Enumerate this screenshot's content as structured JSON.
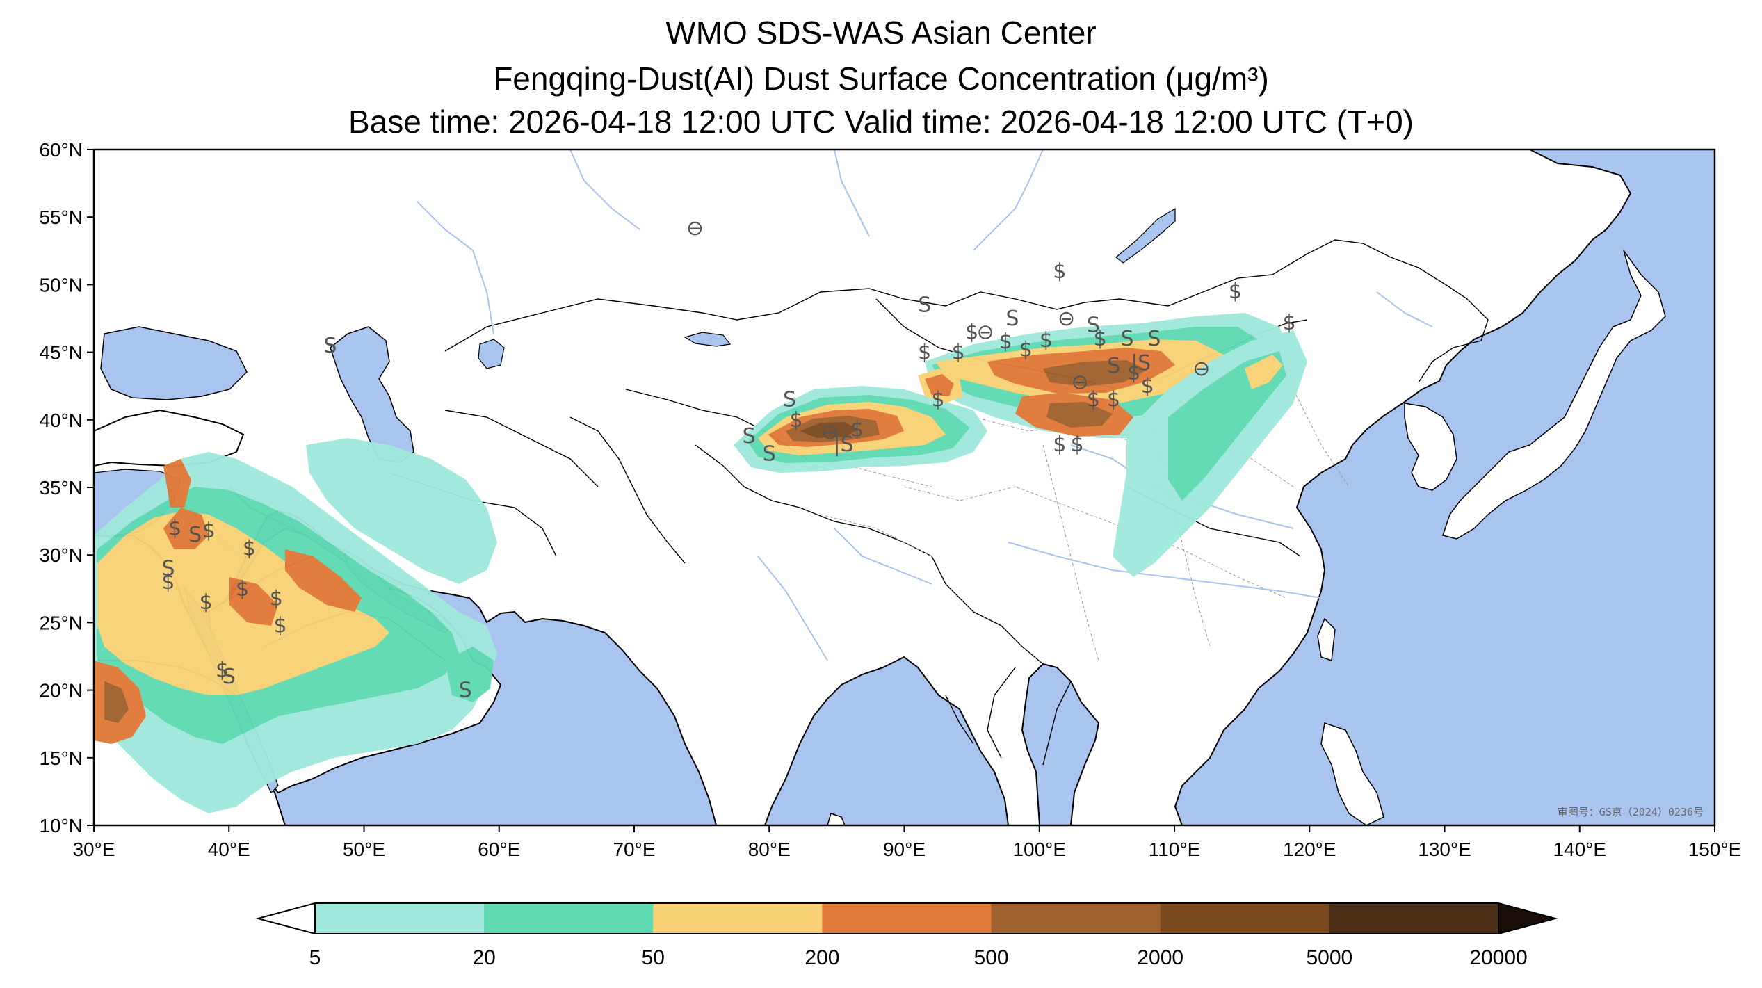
{
  "header": {
    "line1": "WMO SDS-WAS Asian Center",
    "line2": "Fengqing-Dust(AI) Dust Surface Concentration (μg/m³)",
    "line3": "Base time: 2026-04-18 12:00 UTC Valid time: 2026-04-18 12:00 UTC (T+0)"
  },
  "map": {
    "lon_range": [
      30,
      150
    ],
    "lat_range": [
      10,
      60
    ],
    "lon_ticks": [
      "30°E",
      "40°E",
      "50°E",
      "60°E",
      "70°E",
      "80°E",
      "90°E",
      "100°E",
      "110°E",
      "120°E",
      "130°E",
      "140°E",
      "150°E"
    ],
    "lat_ticks": [
      "60°N",
      "55°N",
      "50°N",
      "45°N",
      "40°N",
      "35°N",
      "30°N",
      "25°N",
      "20°N",
      "15°N",
      "10°N"
    ],
    "approval_stamp": "审图号：GS京（2024）0236号",
    "colors": {
      "ocean": "#a9c4ee",
      "land": "#ffffff",
      "border": "#000000",
      "river": "#a9c4ee"
    }
  },
  "colorbar": {
    "levels": [
      "5",
      "20",
      "50",
      "200",
      "500",
      "2000",
      "5000",
      "20000"
    ],
    "colors": [
      "#a0e8dc",
      "#5ed9b2",
      "#f8d275",
      "#e07838",
      "#9f612d",
      "#7b4a21",
      "#4a2f16"
    ],
    "under_color": "#ffffff",
    "over_color": "#1a0f08"
  },
  "symbols": [
    {
      "lon": 84.5,
      "lat": 39.1,
      "glyph": "⊖"
    },
    {
      "lon": 96.0,
      "lat": 46.5,
      "glyph": "⊖"
    },
    {
      "lon": 102.0,
      "lat": 47.5,
      "glyph": "⊖"
    },
    {
      "lon": 112.0,
      "lat": 43.8,
      "glyph": "⊖"
    },
    {
      "lon": 74.5,
      "lat": 54.2,
      "glyph": "⊖"
    },
    {
      "lon": 103.0,
      "lat": 42.8,
      "glyph": "⊖"
    },
    {
      "lon": 82.0,
      "lat": 40.0,
      "glyph": "$"
    },
    {
      "lon": 86.5,
      "lat": 39.3,
      "glyph": "$"
    },
    {
      "lon": 91.5,
      "lat": 45.0,
      "glyph": "$"
    },
    {
      "lon": 94.0,
      "lat": 45.0,
      "glyph": "$"
    },
    {
      "lon": 95.0,
      "lat": 46.5,
      "glyph": "$"
    },
    {
      "lon": 97.5,
      "lat": 45.8,
      "glyph": "$"
    },
    {
      "lon": 99.0,
      "lat": 45.2,
      "glyph": "$"
    },
    {
      "lon": 100.5,
      "lat": 45.9,
      "glyph": "$"
    },
    {
      "lon": 104.5,
      "lat": 46.0,
      "glyph": "$"
    },
    {
      "lon": 101.5,
      "lat": 51.0,
      "glyph": "$"
    },
    {
      "lon": 114.5,
      "lat": 49.5,
      "glyph": "$"
    },
    {
      "lon": 118.5,
      "lat": 47.2,
      "glyph": "$"
    },
    {
      "lon": 92.5,
      "lat": 41.5,
      "glyph": "$"
    },
    {
      "lon": 101.5,
      "lat": 38.2,
      "glyph": "$"
    },
    {
      "lon": 102.8,
      "lat": 38.2,
      "glyph": "$"
    },
    {
      "lon": 104.0,
      "lat": 41.5,
      "glyph": "$"
    },
    {
      "lon": 105.5,
      "lat": 41.5,
      "glyph": "$"
    },
    {
      "lon": 107.0,
      "lat": 43.5,
      "glyph": "$"
    },
    {
      "lon": 108.0,
      "lat": 42.5,
      "glyph": "$"
    },
    {
      "lon": 36.0,
      "lat": 32.0,
      "glyph": "$"
    },
    {
      "lon": 38.5,
      "lat": 31.8,
      "glyph": "$"
    },
    {
      "lon": 41.5,
      "lat": 30.5,
      "glyph": "$"
    },
    {
      "lon": 41.0,
      "lat": 27.5,
      "glyph": "$"
    },
    {
      "lon": 43.5,
      "lat": 26.8,
      "glyph": "$"
    },
    {
      "lon": 43.8,
      "lat": 24.8,
      "glyph": "$"
    },
    {
      "lon": 38.3,
      "lat": 26.5,
      "glyph": "$"
    },
    {
      "lon": 35.5,
      "lat": 28.0,
      "glyph": "$"
    },
    {
      "lon": 39.5,
      "lat": 21.5,
      "glyph": "$"
    },
    {
      "lon": 80.0,
      "lat": 37.5,
      "glyph": "S"
    },
    {
      "lon": 78.5,
      "lat": 38.8,
      "glyph": "S"
    },
    {
      "lon": 81.5,
      "lat": 41.5,
      "glyph": "S"
    },
    {
      "lon": 91.5,
      "lat": 48.5,
      "glyph": "S"
    },
    {
      "lon": 98.0,
      "lat": 47.5,
      "glyph": "S"
    },
    {
      "lon": 104.0,
      "lat": 47.0,
      "glyph": "S"
    },
    {
      "lon": 105.5,
      "lat": 44.0,
      "glyph": "S"
    },
    {
      "lon": 106.5,
      "lat": 46.0,
      "glyph": "S"
    },
    {
      "lon": 108.5,
      "lat": 46.0,
      "glyph": "S"
    },
    {
      "lon": 47.5,
      "lat": 45.5,
      "glyph": "S"
    },
    {
      "lon": 35.5,
      "lat": 29.0,
      "glyph": "S"
    },
    {
      "lon": 40.0,
      "lat": 21.0,
      "glyph": "S"
    },
    {
      "lon": 57.5,
      "lat": 20.0,
      "glyph": "S"
    },
    {
      "lon": 37.5,
      "lat": 31.5,
      "glyph": "S"
    },
    {
      "lon": 85.5,
      "lat": 38.2,
      "glyph": "|S"
    },
    {
      "lon": 107.5,
      "lat": 44.2,
      "glyph": "|S"
    }
  ]
}
